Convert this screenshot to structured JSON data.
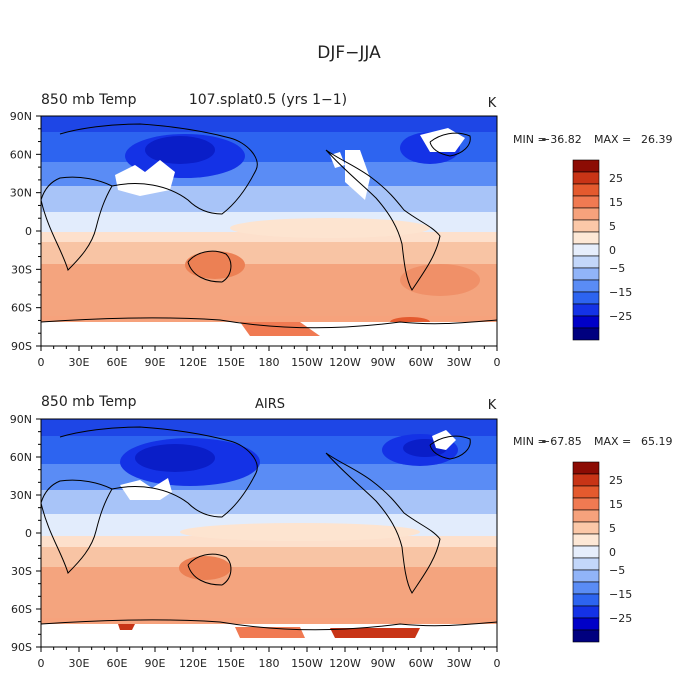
{
  "figure": {
    "title": "DJF−JJA"
  },
  "palette": {
    "ocean_bg": "#f7dcc4",
    "colors": [
      "#00007f",
      "#0000c8",
      "#1432e6",
      "#2d64f0",
      "#5a8cf5",
      "#91b4f8",
      "#c3d7fa",
      "#e6eefc",
      "#fde8d6",
      "#fbc8a8",
      "#f6a27c",
      "#f07a52",
      "#e45a2e",
      "#c83416",
      "#8c0c04"
    ],
    "coast": "#000000"
  },
  "panels": [
    {
      "id": "model",
      "left_title": "850 mb Temp",
      "center_title": "107.splat0.5 (yrs 1−1)",
      "units": "K",
      "min_label": "MIN =",
      "min_value": "−36.82",
      "max_label": "MAX =",
      "max_value": "26.39"
    },
    {
      "id": "obs",
      "left_title": "850 mb Temp",
      "center_title": "AIRS",
      "units": "K",
      "min_label": "MIN =",
      "min_value": "−67.85",
      "max_label": "MAX =",
      "max_value": "65.19"
    }
  ],
  "colorbar": {
    "tick_labels": [
      "25",
      "15",
      "5",
      "0",
      "−5",
      "−15",
      "−25"
    ]
  },
  "axes": {
    "lat_ticks": [
      "90N",
      "60N",
      "30N",
      "0",
      "30S",
      "60S",
      "90S"
    ],
    "lon_ticks": [
      "0",
      "30E",
      "60E",
      "90E",
      "120E",
      "150E",
      "180",
      "150W",
      "120W",
      "90W",
      "60W",
      "30W",
      "0"
    ]
  }
}
